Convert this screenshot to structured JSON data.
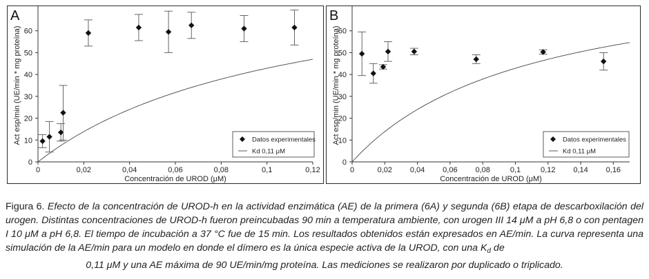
{
  "chart_data": [
    {
      "panel_letter": "A",
      "type": "scatter",
      "xlabel": "Concentración de UROD (μM)",
      "ylabel": "Act esp/min (UE/min * mg proteína)",
      "xlim": [
        0,
        0.12
      ],
      "ylim": [
        0,
        70
      ],
      "xticks": [
        "0",
        "0,02",
        "0,04",
        "0,06",
        "0,08",
        "0,1",
        "0,12"
      ],
      "yticks": [
        "0",
        "10",
        "20",
        "30",
        "40",
        "50",
        "60"
      ],
      "xtick_values": [
        0,
        0.02,
        0.04,
        0.06,
        0.08,
        0.1,
        0.12
      ],
      "ytick_values": [
        0,
        10,
        20,
        30,
        40,
        50,
        60
      ],
      "legend_position": "bottom-right",
      "legend": {
        "points": "Datos experimentales",
        "curve": "Kd 0,11 μM"
      },
      "points": [
        {
          "x": 0.002,
          "y": 9.5,
          "err": 3.0
        },
        {
          "x": 0.005,
          "y": 11.5,
          "err": 7.0
        },
        {
          "x": 0.01,
          "y": 13.5,
          "err": 4.0
        },
        {
          "x": 0.011,
          "y": 22.5,
          "err": 12.5
        },
        {
          "x": 0.022,
          "y": 59.0,
          "err": 6.0
        },
        {
          "x": 0.044,
          "y": 61.5,
          "err": 6.0
        },
        {
          "x": 0.057,
          "y": 59.5,
          "err": 9.5
        },
        {
          "x": 0.067,
          "y": 62.5,
          "err": 6.0
        },
        {
          "x": 0.09,
          "y": 61.0,
          "err": 6.0
        },
        {
          "x": 0.112,
          "y": 61.5,
          "err": 8.0
        }
      ],
      "curve": {
        "vmax": 90,
        "kd": 0.11
      }
    },
    {
      "panel_letter": "B",
      "type": "scatter",
      "xlabel": "Concentración de UROD (μM)",
      "ylabel": "Act esp/min (UE/min * mg proteína)",
      "xlim": [
        0,
        0.17
      ],
      "ylim": [
        0,
        70
      ],
      "xticks": [
        "0",
        "0,02",
        "0,04",
        "0,06",
        "0,08",
        "0,1",
        "0,12",
        "0,14",
        "0,16"
      ],
      "yticks": [
        "0",
        "10",
        "20",
        "30",
        "40",
        "50",
        "60"
      ],
      "xtick_values": [
        0,
        0.02,
        0.04,
        0.06,
        0.08,
        0.1,
        0.12,
        0.14,
        0.16
      ],
      "ytick_values": [
        0,
        10,
        20,
        30,
        40,
        50,
        60
      ],
      "legend_position": "bottom-right",
      "legend": {
        "points": "Datos experimentales",
        "curve": "Kd 0,11 μM"
      },
      "points": [
        {
          "x": 0.006,
          "y": 49.5,
          "err": 10.0
        },
        {
          "x": 0.013,
          "y": 40.5,
          "err": 4.5
        },
        {
          "x": 0.019,
          "y": 43.5,
          "err": 1.0
        },
        {
          "x": 0.022,
          "y": 50.5,
          "err": 4.5
        },
        {
          "x": 0.038,
          "y": 50.5,
          "err": 1.5
        },
        {
          "x": 0.076,
          "y": 47.0,
          "err": 2.0
        },
        {
          "x": 0.117,
          "y": 50.3,
          "err": 1.0
        },
        {
          "x": 0.154,
          "y": 46.0,
          "err": 4.0
        }
      ],
      "curve": {
        "vmax": 90,
        "kd": 0.11
      }
    }
  ],
  "caption": {
    "label": "Figura 6.",
    "text": " Efecto de la concentración de UROD-h en la actividad enzimática (AE) de la primera (6A) y segunda (6B) etapa de descarboxilación del urogen. Distintas concentraciones de UROD-h fueron preincubadas 90 min a temperatura ambiente, con urogen III 14 μM a pH 6,8 o con pentagen I 10 μM a pH 6,8. El tiempo de incubación a 37 °C fue de 15 min. Los resultados obtenidos están expresados en AE/min. La curva representa una simulación de la AE/min para un modelo en donde el dímero es la única especie activa de la UROD, con una K",
    "sub": "d",
    "text_end": " de",
    "last_line": "0,11 μM y una AE máxima de 90 UE/min/mg proteína. Las mediciones se realizaron por duplicado o triplicado."
  }
}
